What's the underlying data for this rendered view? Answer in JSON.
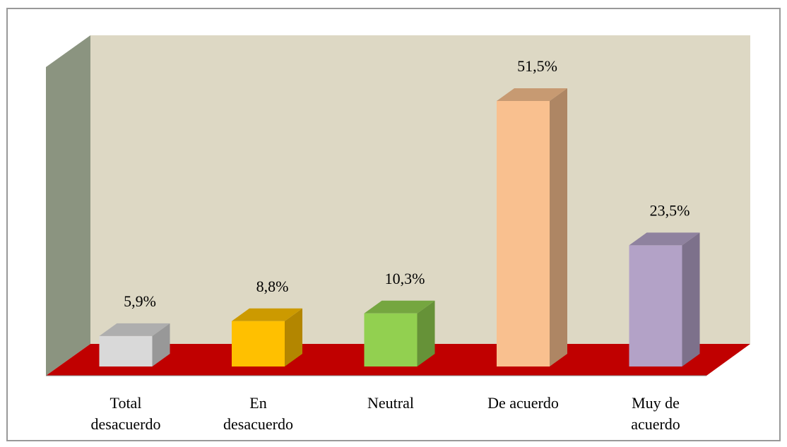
{
  "chart_data": {
    "type": "bar3d",
    "categories": [
      "Total\ndesacuerdo",
      "En\ndesacuerdo",
      "Neutral",
      "De acuerdo",
      "Muy de\nacuerdo"
    ],
    "values": [
      5.9,
      8.8,
      10.3,
      51.5,
      23.5
    ],
    "value_labels": [
      "5,9%",
      "8,8%",
      "10,3%",
      "51,5%",
      "23,5%"
    ],
    "colors": [
      "#d9d9d9",
      "#ffc000",
      "#92d050",
      "#f9c08f",
      "#b3a2c7"
    ]
  }
}
